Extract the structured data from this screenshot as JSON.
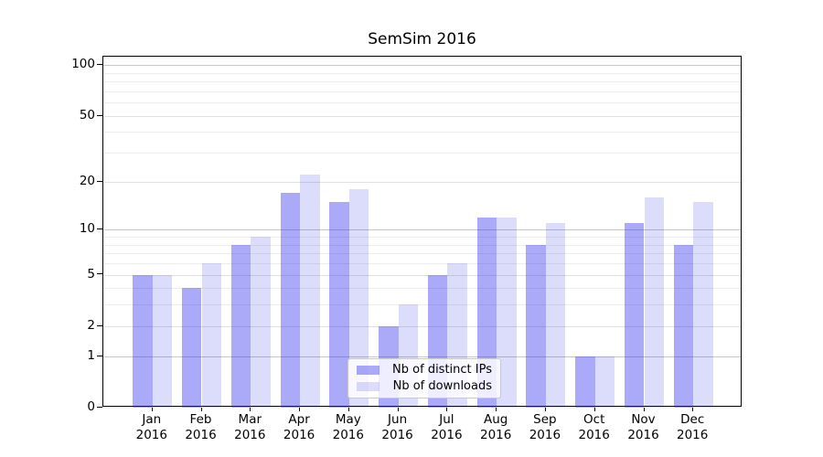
{
  "chart_data": {
    "type": "bar",
    "title": "SemSim 2016",
    "categories": [
      "Jan",
      "Feb",
      "Mar",
      "Apr",
      "May",
      "Jun",
      "Jul",
      "Aug",
      "Sep",
      "Oct",
      "Nov",
      "Dec"
    ],
    "category_year": "2016",
    "series": [
      {
        "name": "Nb of distinct IPs",
        "color": "#2b2bf0",
        "alpha": 0.4,
        "solid_equivalent": "#aaaaf9",
        "values": [
          5,
          4,
          8,
          17,
          15,
          2,
          5,
          12,
          8,
          1,
          11,
          8
        ]
      },
      {
        "name": "Nb of downloads",
        "color": "#1e1ee6",
        "alpha": 0.155,
        "solid_equivalent": "#dbdbfa",
        "values": [
          5,
          6,
          9,
          22,
          18,
          3,
          6,
          12,
          11,
          1,
          16,
          15
        ]
      }
    ],
    "y_axis": {
      "scale": "log1p",
      "ticks": [
        100,
        50,
        20,
        10,
        5,
        2,
        1,
        0
      ],
      "ylim": [
        0,
        112
      ],
      "grid_decade": [
        1,
        10,
        100
      ],
      "grid_sub": [
        2,
        5,
        20,
        50
      ],
      "grid_minor": [
        3,
        4,
        6,
        7,
        8,
        9,
        30,
        40,
        60,
        70,
        80,
        90
      ]
    },
    "legend_position": "lower center",
    "grid": true
  },
  "colors": {
    "grid_decade": "#c6c6c6",
    "grid_sub": "#e0e0e0",
    "grid_minor": "#ececec",
    "axis": "#000000",
    "text": "#000000",
    "legend_border": "#c9c9c9",
    "legend_bg": "rgba(255,255,255,0.8)"
  }
}
